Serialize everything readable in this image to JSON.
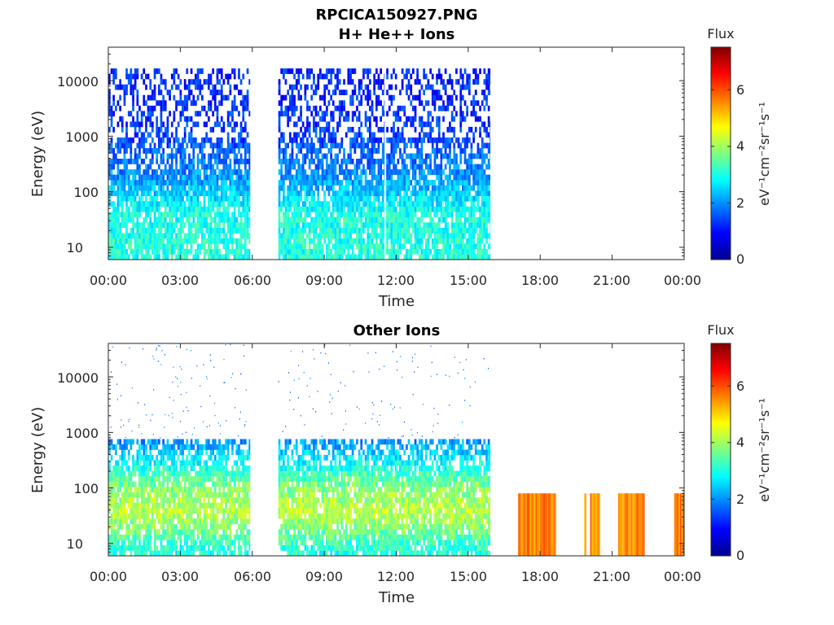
{
  "figure_title": "RPCICA150927.PNG",
  "chart_data": [
    {
      "type": "heatmap",
      "title": "H+ He++ Ions",
      "xlabel": "Time",
      "ylabel": "Energy (eV)",
      "yscale": "log",
      "xlim": [
        "00:00",
        "24:00"
      ],
      "ylim": [
        6,
        40000
      ],
      "xticks": [
        "00:00",
        "03:00",
        "06:00",
        "09:00",
        "12:00",
        "15:00",
        "18:00",
        "21:00",
        "00:00"
      ],
      "yticks": [
        10,
        100,
        1000,
        10000
      ],
      "ytick_labels": [
        "10",
        "100",
        "1000",
        "10000"
      ],
      "colorbar": {
        "label": "Flux",
        "units": "eV⁻¹cm⁻²sr⁻¹s⁻¹",
        "range": [
          0,
          7.5
        ],
        "ticks": [
          0,
          2,
          4,
          6
        ],
        "colormap": "jet"
      },
      "data_segments": [
        {
          "start": "00:00",
          "end": "05:55"
        },
        {
          "start": "07:05",
          "end": "11:30"
        },
        {
          "start": "11:35",
          "end": "15:55"
        }
      ],
      "profile": {
        "energy": [
          6,
          10,
          20,
          40,
          100,
          200,
          1000,
          5000,
          15000
        ],
        "flux": [
          3.0,
          3.1,
          3.0,
          3.0,
          2.4,
          2.0,
          1.4,
          1.2,
          1.2
        ]
      }
    },
    {
      "type": "heatmap",
      "title": "Other Ions",
      "xlabel": "Time",
      "ylabel": "Energy (eV)",
      "yscale": "log",
      "xlim": [
        "00:00",
        "24:00"
      ],
      "ylim": [
        6,
        40000
      ],
      "xticks": [
        "00:00",
        "03:00",
        "06:00",
        "09:00",
        "12:00",
        "15:00",
        "18:00",
        "21:00",
        "00:00"
      ],
      "yticks": [
        10,
        100,
        1000,
        10000
      ],
      "ytick_labels": [
        "10",
        "100",
        "1000",
        "10000"
      ],
      "colorbar": {
        "label": "Flux",
        "units": "eV⁻¹cm⁻²sr⁻¹s⁻¹",
        "range": [
          0,
          7.5
        ],
        "ticks": [
          0,
          2,
          4,
          6
        ],
        "colormap": "jet"
      },
      "data_segments": [
        {
          "start": "00:00",
          "end": "05:55"
        },
        {
          "start": "07:05",
          "end": "15:55"
        }
      ],
      "profile": {
        "energy": [
          6,
          10,
          20,
          40,
          100,
          300,
          700
        ],
        "flux": [
          3.0,
          3.2,
          3.8,
          4.2,
          3.8,
          2.8,
          2.0
        ]
      },
      "high_flux_blocks": [
        {
          "start": "17:05",
          "end": "18:05"
        },
        {
          "start": "18:05",
          "end": "18:40"
        },
        {
          "start": "19:50",
          "end": "19:55"
        },
        {
          "start": "20:05",
          "end": "20:30"
        },
        {
          "start": "21:15",
          "end": "22:20"
        },
        {
          "start": "23:35",
          "end": "24:00"
        }
      ],
      "high_flux_energy_range": [
        6,
        80
      ],
      "high_flux_level": 5.6
    }
  ]
}
